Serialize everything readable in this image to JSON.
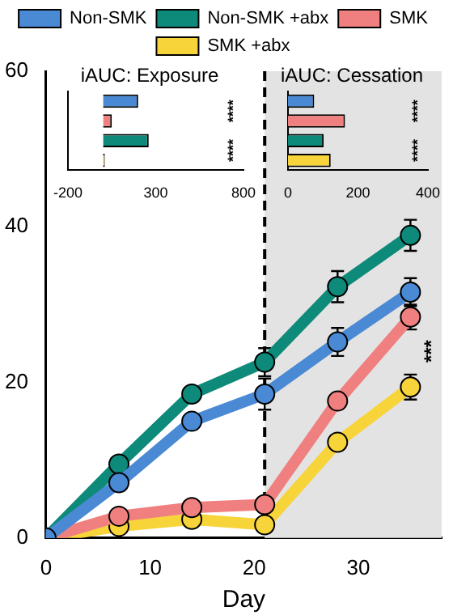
{
  "chart_data": [
    {
      "type": "line",
      "xlabel": "Day",
      "x": [
        0,
        7,
        14,
        21,
        28,
        35
      ],
      "series": [
        {
          "name": "Non-SMK",
          "color": "#4a8ad4",
          "values": [
            0,
            7.1,
            15,
            18.5,
            25.2,
            31.6
          ],
          "errors": [
            null,
            null,
            null,
            2,
            1.8,
            1.8
          ]
        },
        {
          "name": "Non-SMK +abx",
          "color": "#0e8a7a",
          "values": [
            0,
            9.5,
            18.5,
            22.6,
            32.3,
            38.9
          ],
          "errors": [
            null,
            null,
            null,
            1.8,
            2,
            2
          ]
        },
        {
          "name": "SMK",
          "color": "#f08080",
          "values": [
            0,
            2.8,
            3.9,
            4.3,
            17.6,
            28.4
          ],
          "errors": [
            null,
            null,
            null,
            null,
            null,
            1.6
          ]
        },
        {
          "name": "SMK +abx",
          "color": "#f7d43a",
          "values": [
            0,
            1.5,
            2.4,
            1.7,
            12.3,
            19.4
          ],
          "errors": [
            null,
            null,
            null,
            null,
            null,
            1.6
          ]
        }
      ],
      "xlim": [
        0,
        38
      ],
      "xticks": [
        0,
        10,
        20,
        30
      ],
      "ylim": [
        0,
        60
      ],
      "yticks": [
        0,
        20,
        40,
        60
      ],
      "legend": "top",
      "marker": "circle",
      "line_style": "solid",
      "grid": false,
      "ref_lines": [
        {
          "axis": "x",
          "value": 21,
          "line_style": "dashed",
          "color": "#000000"
        }
      ],
      "bands": [
        {
          "axis": "x",
          "from": 21,
          "to": 38,
          "color": "#e3e3e3"
        }
      ],
      "annotations": [
        "***"
      ]
    },
    {
      "type": "bar",
      "orientation": "horizontal",
      "title": "iAUC: Exposure",
      "categories": [
        null,
        null,
        null,
        null
      ],
      "values": [
        200,
        50,
        260,
        10
      ],
      "colors": [
        "#4a8ad4",
        "#f08080",
        "#0e8a7a",
        "#f7d43a"
      ],
      "xlim": [
        -200,
        800
      ],
      "xticks": [
        -200,
        300,
        800
      ],
      "tick_labels": "x",
      "annotations": [
        "****",
        "****"
      ]
    },
    {
      "type": "bar",
      "orientation": "horizontal",
      "title": "iAUC: Cessation",
      "categories": [
        null,
        null,
        null,
        null
      ],
      "values": [
        75,
        163,
        102,
        122
      ],
      "colors": [
        "#4a8ad4",
        "#f08080",
        "#0e8a7a",
        "#f7d43a"
      ],
      "xlim": [
        0,
        400
      ],
      "xticks": [
        0,
        200,
        400
      ],
      "tick_labels": "x",
      "annotations": [
        "****",
        "****"
      ]
    }
  ]
}
